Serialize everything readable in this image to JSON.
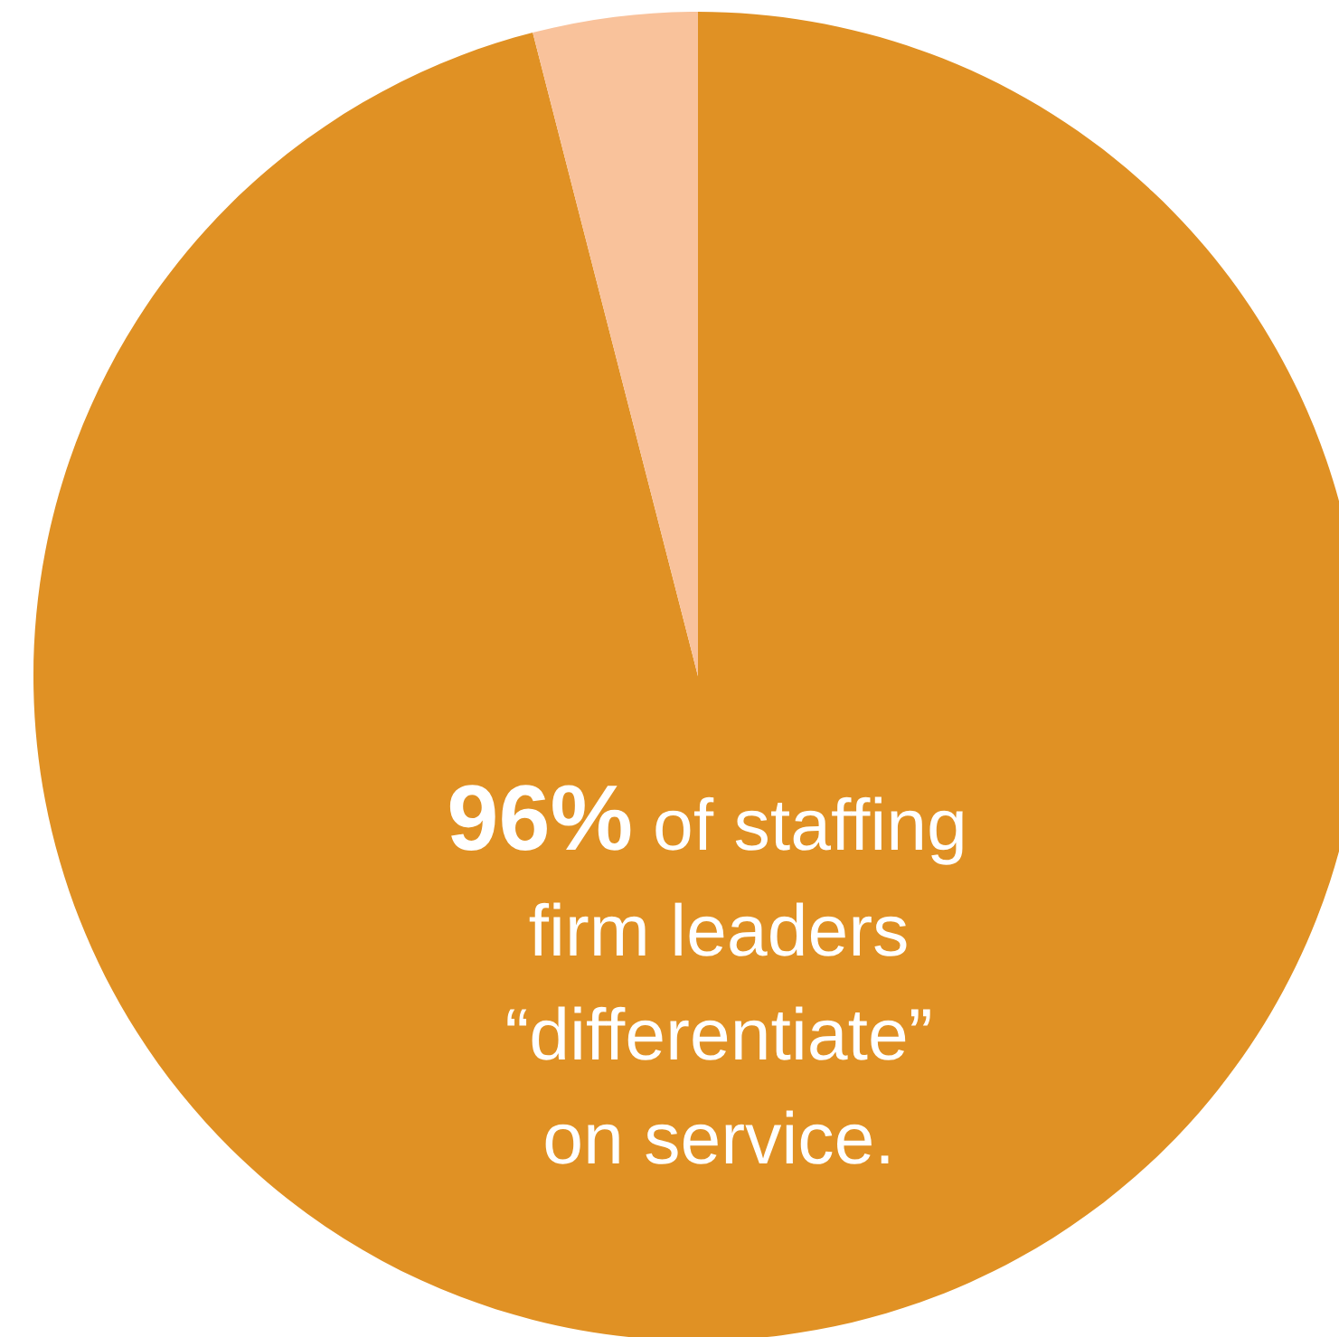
{
  "chart_data": {
    "type": "pie",
    "categories": [
      null,
      null
    ],
    "values": [
      96,
      4
    ],
    "colors": [
      "#e09124",
      "#f9c29b"
    ],
    "value_labels": [
      "96%",
      null
    ],
    "annotations": [
      "of staffing\nfirm leaders\n“differentiate”\non service."
    ]
  }
}
